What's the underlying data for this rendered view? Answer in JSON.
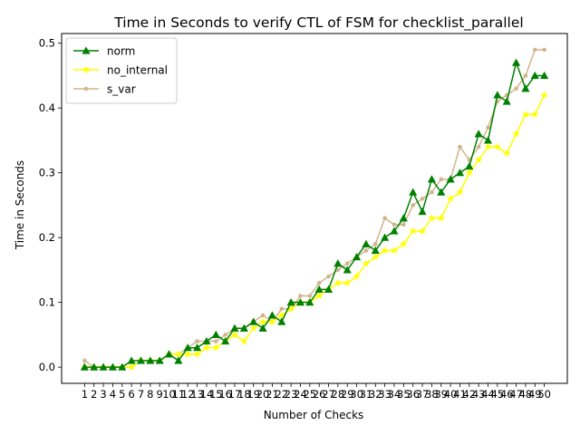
{
  "chart_data": {
    "type": "line",
    "title": "Time in Seconds to verify CTL of FSM for checklist_parallel",
    "xlabel": "Number of Checks",
    "ylabel": "Time in Seconds",
    "x": [
      1,
      2,
      3,
      4,
      5,
      6,
      7,
      8,
      9,
      10,
      11,
      12,
      13,
      14,
      15,
      16,
      17,
      18,
      19,
      20,
      21,
      22,
      23,
      24,
      25,
      26,
      27,
      28,
      29,
      30,
      31,
      32,
      33,
      34,
      35,
      36,
      37,
      38,
      39,
      40,
      41,
      42,
      43,
      44,
      45,
      46,
      47,
      48,
      49,
      50
    ],
    "ylim": [
      -0.025,
      0.515
    ],
    "yticks": [
      0.0,
      0.1,
      0.2,
      0.3,
      0.4,
      0.5
    ],
    "ytick_labels": [
      "0.0",
      "0.1",
      "0.2",
      "0.3",
      "0.4",
      "0.5"
    ],
    "grid": false,
    "legend": "top-left",
    "series": [
      {
        "name": "norm",
        "color": "#008000",
        "marker": "triangle",
        "values": [
          0.0,
          0.0,
          0.0,
          0.0,
          0.0,
          0.01,
          0.01,
          0.01,
          0.01,
          0.02,
          0.01,
          0.03,
          0.03,
          0.04,
          0.05,
          0.04,
          0.06,
          0.06,
          0.07,
          0.06,
          0.08,
          0.07,
          0.1,
          0.1,
          0.1,
          0.12,
          0.12,
          0.16,
          0.15,
          0.17,
          0.19,
          0.18,
          0.2,
          0.21,
          0.23,
          0.27,
          0.24,
          0.29,
          0.27,
          0.29,
          0.3,
          0.31,
          0.36,
          0.35,
          0.42,
          0.41,
          0.47,
          0.43,
          0.45,
          0.45
        ]
      },
      {
        "name": "no_internal",
        "color": "#ffff00",
        "marker": "star",
        "values": [
          0.0,
          0.0,
          0.0,
          0.0,
          0.0,
          0.0,
          0.01,
          0.01,
          0.01,
          0.02,
          0.02,
          0.02,
          0.02,
          0.03,
          0.03,
          0.04,
          0.05,
          0.04,
          0.06,
          0.07,
          0.07,
          0.08,
          0.09,
          0.1,
          0.1,
          0.11,
          0.12,
          0.13,
          0.13,
          0.14,
          0.16,
          0.17,
          0.18,
          0.18,
          0.19,
          0.21,
          0.21,
          0.23,
          0.23,
          0.26,
          0.27,
          0.3,
          0.32,
          0.34,
          0.34,
          0.33,
          0.36,
          0.39,
          0.39,
          0.42
        ]
      },
      {
        "name": "s_var",
        "color": "#d2b48c",
        "marker": "circle",
        "values": [
          0.01,
          0.0,
          0.0,
          0.0,
          0.0,
          0.0,
          0.01,
          0.01,
          0.01,
          0.02,
          0.02,
          0.03,
          0.04,
          0.04,
          0.04,
          0.05,
          0.06,
          0.06,
          0.07,
          0.08,
          0.07,
          0.09,
          0.09,
          0.11,
          0.11,
          0.13,
          0.14,
          0.15,
          0.16,
          0.17,
          0.18,
          0.19,
          0.23,
          0.22,
          0.22,
          0.25,
          0.26,
          0.27,
          0.29,
          0.29,
          0.34,
          0.32,
          0.34,
          0.37,
          0.41,
          0.42,
          0.43,
          0.45,
          0.49,
          0.49
        ]
      }
    ]
  }
}
